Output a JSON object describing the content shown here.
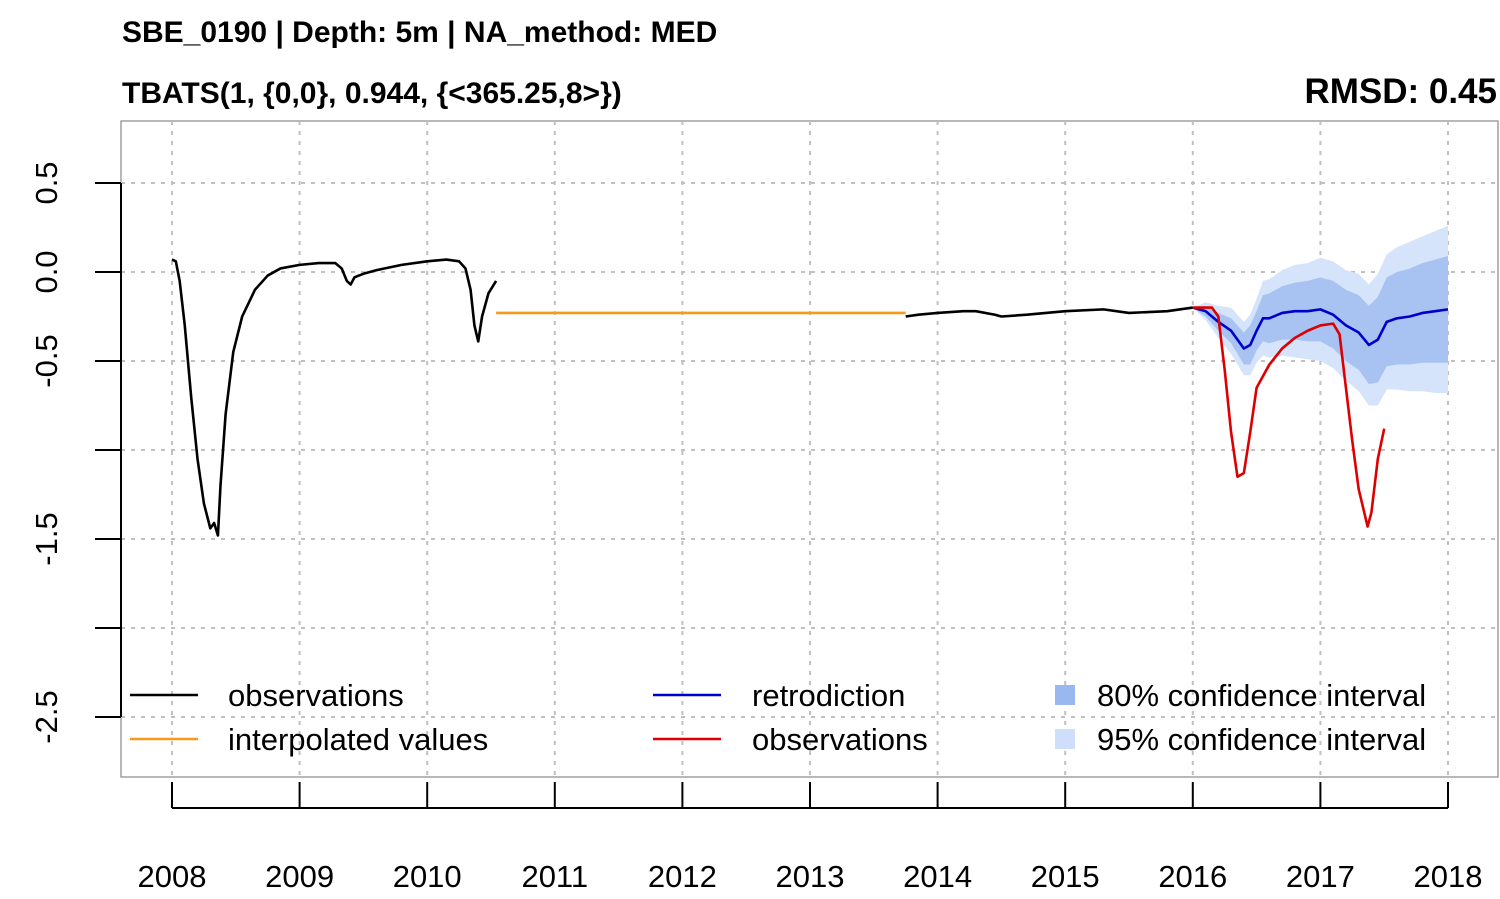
{
  "chart_data": {
    "type": "line",
    "title": "SBE_0190 | Depth: 5m | NA_method: MED",
    "subtitle": "TBATS(1, {0,0}, 0.944, {<365.25,8>})",
    "annotation": "RMSD: 0.45",
    "xlabel": "",
    "ylabel": "",
    "xlim": [
      2008,
      2018
    ],
    "ylim": [
      -2.5,
      0.5
    ],
    "x_ticks": [
      "2008",
      "2009",
      "2010",
      "2011",
      "2012",
      "2013",
      "2014",
      "2015",
      "2016",
      "2017",
      "2018"
    ],
    "y_ticks": [
      "0.5",
      "0.0",
      "-0.5",
      "-1.5",
      "-2.5"
    ],
    "grid": true,
    "legend": {
      "placement": "bottom",
      "entries": [
        {
          "label": "observations",
          "color": "#000000",
          "kind": "line"
        },
        {
          "label": "interpolated values",
          "color": "#f59a1a",
          "kind": "line"
        },
        {
          "label": "retrodiction",
          "color": "#0000cc",
          "kind": "line"
        },
        {
          "label": "observations",
          "color": "#dd0000",
          "kind": "line"
        },
        {
          "label": "80% confidence interval",
          "color": "#9ab8f0",
          "kind": "box"
        },
        {
          "label": "95% confidence interval",
          "color": "#cfdefa",
          "kind": "box"
        }
      ]
    },
    "series": [
      {
        "color": "#000000",
        "segments": [
          [
            [
              2008.0,
              0.07
            ],
            [
              2008.03,
              0.06
            ],
            [
              2008.06,
              -0.05
            ],
            [
              2008.1,
              -0.3
            ],
            [
              2008.15,
              -0.7
            ],
            [
              2008.2,
              -1.05
            ],
            [
              2008.25,
              -1.3
            ],
            [
              2008.3,
              -1.44
            ],
            [
              2008.33,
              -1.41
            ],
            [
              2008.36,
              -1.48
            ],
            [
              2008.38,
              -1.2
            ],
            [
              2008.42,
              -0.8
            ],
            [
              2008.48,
              -0.45
            ],
            [
              2008.55,
              -0.25
            ],
            [
              2008.65,
              -0.1
            ],
            [
              2008.75,
              -0.02
            ],
            [
              2008.85,
              0.02
            ],
            [
              2009.0,
              0.04
            ],
            [
              2009.15,
              0.05
            ],
            [
              2009.28,
              0.05
            ],
            [
              2009.33,
              0.02
            ],
            [
              2009.37,
              -0.05
            ],
            [
              2009.4,
              -0.07
            ],
            [
              2009.43,
              -0.03
            ],
            [
              2009.5,
              -0.01
            ],
            [
              2009.6,
              0.01
            ],
            [
              2009.8,
              0.04
            ],
            [
              2010.0,
              0.06
            ],
            [
              2010.15,
              0.07
            ],
            [
              2010.25,
              0.06
            ],
            [
              2010.3,
              0.02
            ],
            [
              2010.34,
              -0.1
            ],
            [
              2010.37,
              -0.3
            ],
            [
              2010.4,
              -0.39
            ],
            [
              2010.43,
              -0.25
            ],
            [
              2010.48,
              -0.12
            ],
            [
              2010.54,
              -0.05
            ]
          ],
          [
            [
              2013.75,
              -0.25
            ],
            [
              2013.85,
              -0.24
            ],
            [
              2014.0,
              -0.23
            ],
            [
              2014.2,
              -0.22
            ],
            [
              2014.3,
              -0.22
            ],
            [
              2014.45,
              -0.24
            ],
            [
              2014.5,
              -0.25
            ],
            [
              2014.7,
              -0.24
            ],
            [
              2015.0,
              -0.22
            ],
            [
              2015.3,
              -0.21
            ],
            [
              2015.5,
              -0.23
            ],
            [
              2015.8,
              -0.22
            ],
            [
              2016.0,
              -0.2
            ]
          ]
        ]
      },
      {
        "color": "#f59a1a",
        "segments": [
          [
            [
              2010.54,
              -0.23
            ],
            [
              2013.75,
              -0.23
            ]
          ]
        ]
      },
      {
        "color": "#0000cc",
        "segments": [
          [
            [
              2016.0,
              -0.2
            ],
            [
              2016.1,
              -0.22
            ],
            [
              2016.2,
              -0.28
            ],
            [
              2016.3,
              -0.33
            ],
            [
              2016.4,
              -0.43
            ],
            [
              2016.45,
              -0.41
            ],
            [
              2016.5,
              -0.33
            ],
            [
              2016.55,
              -0.26
            ],
            [
              2016.6,
              -0.26
            ],
            [
              2016.7,
              -0.23
            ],
            [
              2016.8,
              -0.22
            ],
            [
              2016.9,
              -0.22
            ],
            [
              2017.0,
              -0.21
            ],
            [
              2017.1,
              -0.24
            ],
            [
              2017.2,
              -0.3
            ],
            [
              2017.3,
              -0.34
            ],
            [
              2017.38,
              -0.41
            ],
            [
              2017.45,
              -0.38
            ],
            [
              2017.52,
              -0.28
            ],
            [
              2017.6,
              -0.26
            ],
            [
              2017.7,
              -0.25
            ],
            [
              2017.8,
              -0.23
            ],
            [
              2017.9,
              -0.22
            ],
            [
              2018.0,
              -0.21
            ]
          ]
        ]
      },
      {
        "color": "#dd0000",
        "segments": [
          [
            [
              2016.0,
              -0.2
            ],
            [
              2016.15,
              -0.2
            ],
            [
              2016.2,
              -0.25
            ],
            [
              2016.25,
              -0.55
            ],
            [
              2016.3,
              -0.9
            ],
            [
              2016.35,
              -1.15
            ],
            [
              2016.4,
              -1.13
            ],
            [
              2016.45,
              -0.9
            ],
            [
              2016.5,
              -0.65
            ],
            [
              2016.6,
              -0.52
            ],
            [
              2016.7,
              -0.43
            ],
            [
              2016.8,
              -0.37
            ],
            [
              2016.9,
              -0.33
            ],
            [
              2017.0,
              -0.3
            ],
            [
              2017.1,
              -0.29
            ],
            [
              2017.15,
              -0.35
            ],
            [
              2017.2,
              -0.65
            ],
            [
              2017.25,
              -0.95
            ],
            [
              2017.3,
              -1.22
            ],
            [
              2017.37,
              -1.43
            ],
            [
              2017.4,
              -1.35
            ],
            [
              2017.45,
              -1.05
            ],
            [
              2017.5,
              -0.88
            ]
          ]
        ]
      }
    ],
    "ci80": {
      "x": [
        2016.0,
        2016.1,
        2016.2,
        2016.3,
        2016.4,
        2016.45,
        2016.5,
        2016.55,
        2016.6,
        2016.7,
        2016.8,
        2016.9,
        2017.0,
        2017.1,
        2017.2,
        2017.3,
        2017.38,
        2017.45,
        2017.52,
        2017.6,
        2017.7,
        2017.8,
        2017.9,
        2018.0
      ],
      "low": [
        -0.2,
        -0.25,
        -0.33,
        -0.4,
        -0.52,
        -0.52,
        -0.44,
        -0.39,
        -0.4,
        -0.38,
        -0.38,
        -0.39,
        -0.39,
        -0.43,
        -0.5,
        -0.55,
        -0.63,
        -0.62,
        -0.53,
        -0.52,
        -0.52,
        -0.51,
        -0.51,
        -0.51
      ],
      "high": [
        -0.2,
        -0.19,
        -0.23,
        -0.26,
        -0.34,
        -0.3,
        -0.22,
        -0.13,
        -0.12,
        -0.08,
        -0.06,
        -0.05,
        -0.03,
        -0.05,
        -0.1,
        -0.13,
        -0.19,
        -0.14,
        -0.03,
        0.0,
        0.02,
        0.05,
        0.07,
        0.09
      ]
    },
    "ci95": {
      "x": [
        2016.0,
        2016.1,
        2016.2,
        2016.3,
        2016.4,
        2016.45,
        2016.5,
        2016.55,
        2016.6,
        2016.7,
        2016.8,
        2016.9,
        2017.0,
        2017.1,
        2017.2,
        2017.3,
        2017.38,
        2017.45,
        2017.52,
        2017.6,
        2017.7,
        2017.8,
        2017.9,
        2018.0
      ],
      "low": [
        -0.2,
        -0.27,
        -0.37,
        -0.46,
        -0.58,
        -0.58,
        -0.51,
        -0.47,
        -0.48,
        -0.47,
        -0.48,
        -0.49,
        -0.5,
        -0.54,
        -0.61,
        -0.67,
        -0.75,
        -0.75,
        -0.66,
        -0.66,
        -0.67,
        -0.67,
        -0.68,
        -0.68
      ],
      "high": [
        -0.2,
        -0.17,
        -0.19,
        -0.2,
        -0.28,
        -0.24,
        -0.15,
        -0.05,
        -0.04,
        0.01,
        0.04,
        0.05,
        0.08,
        0.06,
        0.01,
        -0.01,
        -0.07,
        -0.01,
        0.1,
        0.14,
        0.17,
        0.2,
        0.23,
        0.26
      ]
    }
  }
}
